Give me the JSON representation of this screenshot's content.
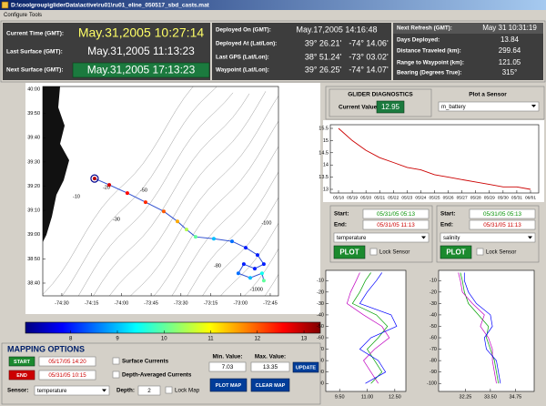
{
  "window": {
    "title": "D:\\coolgroup\\gliderData\\active\\ru01\\ru01_eline_050517_sbd_casts.mat",
    "menu": [
      "Configure",
      "Tools"
    ]
  },
  "status": {
    "left": [
      {
        "label": "Current Time (GMT):",
        "value": "May.31,2005 10:27:14"
      },
      {
        "label": "Last Surface (GMT):",
        "value": "May.31,2005 11:13:23"
      },
      {
        "label": "Next Surface (GMT):",
        "value": "May.31,2005 17:13:23"
      }
    ],
    "middle": [
      {
        "label": "Deployed On (GMT):",
        "values": [
          "May.17,2005 14:16:48"
        ]
      },
      {
        "label": "Deployed At (Lat/Lon):",
        "values": [
          "39° 26.21'",
          "-74° 14.06'"
        ]
      },
      {
        "label": "Last GPS (Lat/Lon):",
        "values": [
          "38° 51.24'",
          "-73° 03.02'"
        ]
      },
      {
        "label": "Waypoint (Lat/Lon):",
        "values": [
          "39° 26.25'",
          "-74° 14.07'"
        ]
      }
    ],
    "right": [
      {
        "label": "Next Refresh (GMT):",
        "value": "May 31 10:31:19"
      },
      {
        "label": "Days Deployed:",
        "value": 13.84
      },
      {
        "label": "Distance Traveled (km):",
        "value": 299.64
      },
      {
        "label": "Range to Waypoint (km):",
        "value": 121.05
      },
      {
        "label": "Bearing (Degrees True):",
        "value": "315°"
      }
    ]
  },
  "chart_data": [
    {
      "type": "map",
      "xlim": [
        -74.66,
        -72.681
      ],
      "ylim": [
        38.579,
        40.019
      ],
      "xticks": [
        {
          "value": -74.5,
          "label": "-74:30"
        },
        {
          "value": -74.25,
          "label": "-74:15"
        },
        {
          "value": -74,
          "label": "-74:00"
        },
        {
          "value": -73.75,
          "label": "-73:45"
        },
        {
          "value": -73.5,
          "label": "-73:30"
        },
        {
          "value": -73.25,
          "label": "-73:15"
        },
        {
          "value": -73,
          "label": "-73:00"
        },
        {
          "value": -72.75,
          "label": "-72:45"
        }
      ],
      "yticks": [
        {
          "value": 40,
          "label": "40:00"
        },
        {
          "value": 39.8333,
          "label": "39:50"
        },
        {
          "value": 39.6667,
          "label": "39:40"
        },
        {
          "value": 39.5,
          "label": "39:30"
        },
        {
          "value": 39.3333,
          "label": "39:20"
        },
        {
          "value": 39.1667,
          "label": "39:10"
        },
        {
          "value": 39,
          "label": "39:00"
        },
        {
          "value": 38.8333,
          "label": "38:50"
        },
        {
          "value": 38.6667,
          "label": "38:40"
        }
      ],
      "track": {
        "lon": [
          -74.225,
          -74.102,
          -73.95,
          -73.797,
          -73.644,
          -73.529,
          -73.453,
          -73.377,
          -73.224,
          -73.071,
          -72.956,
          -72.857,
          -72.804,
          -72.88,
          -72.972,
          -73.018,
          -72.918,
          -72.819,
          -72.804
        ],
        "lat": [
          39.386,
          39.342,
          39.286,
          39.223,
          39.16,
          39.091,
          39.035,
          38.985,
          38.972,
          38.954,
          38.91,
          38.86,
          38.797,
          38.766,
          38.797,
          38.734,
          38.703,
          38.734,
          38.684
        ],
        "values": [
          13,
          12.8,
          12.5,
          12.3,
          12,
          11.5,
          10.5,
          10,
          9,
          8.5,
          8,
          8,
          8,
          8,
          8,
          8.5,
          9,
          9.5,
          10
        ]
      },
      "contour_labels": [
        {
          "text": "-10",
          "lon": -74.377,
          "lat": 39.262
        },
        {
          "text": "-20",
          "lon": -74.125,
          "lat": 39.324
        },
        {
          "text": "-30",
          "lon": -74.041,
          "lat": 39.105
        },
        {
          "text": "-50",
          "lon": -73.812,
          "lat": 39.305
        },
        {
          "text": "-100",
          "lon": -72.781,
          "lat": 39.08
        },
        {
          "text": "-80",
          "lon": -73.193,
          "lat": 38.786
        },
        {
          "text": "-1000",
          "lon": -72.865,
          "lat": 38.623
        }
      ],
      "colorbar_ticks": [
        8,
        9,
        10,
        11,
        12,
        13
      ]
    },
    {
      "type": "line",
      "color": "#cc0000",
      "categories": [
        "05/18",
        "05/19",
        "05/20",
        "05/21",
        "05/22",
        "05/23",
        "05/24",
        "05/25",
        "05/26",
        "05/27",
        "05/28",
        "05/29",
        "05/30",
        "05/31",
        "06/01"
      ],
      "values": [
        15.5,
        15.0,
        14.6,
        14.3,
        14.1,
        13.9,
        13.8,
        13.6,
        13.5,
        13.4,
        13.3,
        13.2,
        13.1,
        13.1,
        13.0
      ],
      "ylim": [
        12.85,
        15.65
      ],
      "yticks": [
        13,
        13.5,
        14,
        14.5,
        15,
        15.5
      ]
    },
    {
      "type": "profile",
      "y": [
        -3,
        -10,
        -20,
        -30,
        -40,
        -50,
        -60,
        -70,
        -80,
        -90,
        -100
      ],
      "xlim": [
        8.75,
        13.1
      ],
      "ylim": [
        -107,
        -1
      ],
      "xticks": [
        {
          "value": 9.5,
          "label": "9.50"
        },
        {
          "value": 11,
          "label": "11.00"
        },
        {
          "value": 12.5,
          "label": "12.50"
        }
      ],
      "yticks": [
        -10,
        -20,
        -30,
        -40,
        -50,
        -60,
        -70,
        -80,
        -90,
        -100
      ],
      "series": [
        {
          "color": "#00a000",
          "values": [
            11.2,
            10.9,
            10.6,
            10.2,
            11.5,
            12.1,
            11.6,
            11.0,
            11.4,
            11.8,
            11.2
          ]
        },
        {
          "color": "#c000c0",
          "values": [
            10.6,
            10.4,
            10.1,
            9.9,
            10.8,
            11.8,
            12.2,
            11.4,
            10.8,
            11.2,
            11.6
          ]
        },
        {
          "color": "#0000ff",
          "values": [
            11.8,
            11.5,
            11.0,
            10.6,
            12.3,
            12.6,
            11.2,
            10.6,
            11.6,
            12.0,
            10.9
          ]
        }
      ]
    },
    {
      "type": "profile",
      "y": [
        -3,
        -10,
        -20,
        -30,
        -40,
        -50,
        -60,
        -70,
        -80,
        -90,
        -100
      ],
      "xlim": [
        30.91,
        35.69
      ],
      "ylim": [
        -107,
        -1
      ],
      "xticks": [
        {
          "value": 32.25,
          "label": "32.25"
        },
        {
          "value": 33.5,
          "label": "33.50"
        },
        {
          "value": 34.75,
          "label": "34.75"
        }
      ],
      "yticks": [
        -10,
        -20,
        -30,
        -40,
        -50,
        -60,
        -70,
        -80,
        -90,
        -100
      ],
      "series": [
        {
          "color": "#00a000",
          "values": [
            32.0,
            32.1,
            32.2,
            32.4,
            32.9,
            33.4,
            33.3,
            33.5,
            33.7,
            33.8,
            33.9
          ]
        },
        {
          "color": "#c000c0",
          "values": [
            31.9,
            32.0,
            32.1,
            32.6,
            33.2,
            33.0,
            33.4,
            33.6,
            33.6,
            33.7,
            33.8
          ]
        },
        {
          "color": "#0000ff",
          "values": [
            32.2,
            32.2,
            32.4,
            32.8,
            33.5,
            33.6,
            33.2,
            33.3,
            33.8,
            33.9,
            34.0
          ]
        }
      ]
    }
  ],
  "diagnostics": {
    "title": "GLIDER DIAGNOSTICS",
    "current_label": "Current Value:",
    "current_value": 12.95,
    "plot_label": "Plot a Sensor",
    "sensor": "m_battery"
  },
  "sensor_panels": [
    {
      "start_label": "Start:",
      "start": "05/31/05 05:13",
      "end_label": "End:",
      "end": "05/31/05 11:13",
      "sensor": "temperature",
      "plot": "PLOT",
      "lock": "Lock Sensor"
    },
    {
      "start_label": "Start:",
      "start": "05/31/05 05:13",
      "end_label": "End:",
      "end": "05/31/05 11:13",
      "sensor": "salinity",
      "plot": "PLOT",
      "lock": "Lock Sensor"
    }
  ],
  "mapping_options": {
    "title": "MAPPING OPTIONS",
    "start_button": "START",
    "start": "05/17/05 14:20",
    "end_button": "END",
    "end": "05/31/05 10:15",
    "surface_currents": "Surface Currents",
    "depth_averaged": "Depth-Averaged Currents",
    "sensor_label": "Sensor:",
    "sensor": "temperature",
    "depth_label": "Depth:",
    "depth": 2,
    "lock_map": "Lock Map",
    "min_label": "Min. Value:",
    "max_label": "Max. Value:",
    "min_value": 7.03,
    "max_value": 13.35,
    "update": "UPDATE",
    "plot_map": "PLOT MAP",
    "clear_map": "CLEAR MAP"
  }
}
